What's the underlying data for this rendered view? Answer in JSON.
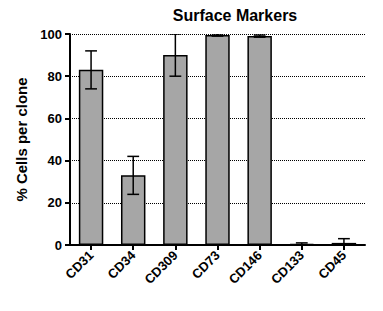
{
  "chart_data": {
    "type": "bar",
    "title": "Surface Markers",
    "y_label": "% Cells per clone",
    "categories": [
      "CD31",
      "CD34",
      "CD309",
      "CD73",
      "CD146",
      "CD133",
      "CD45"
    ],
    "values": [
      83,
      33,
      90,
      99.5,
      99,
      0.5,
      1
    ],
    "errors": [
      9,
      9,
      10,
      0.5,
      0.5,
      0.5,
      2
    ],
    "color": "#a6a6a6",
    "ylim": [
      0,
      100
    ],
    "yticks": [
      0,
      20,
      40,
      60,
      80,
      100
    ],
    "grid": true
  }
}
